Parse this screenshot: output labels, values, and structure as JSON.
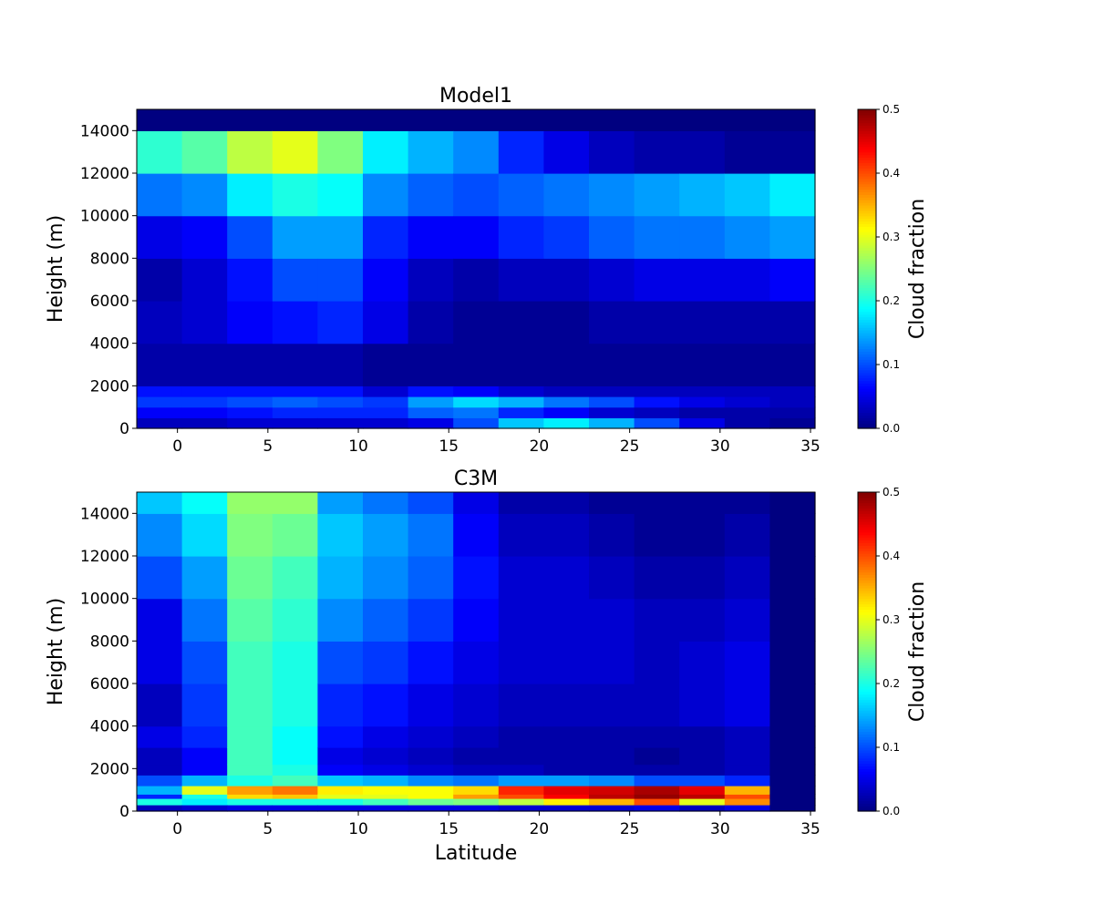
{
  "figure": {
    "xlabel": "Latitude"
  },
  "colorbar": {
    "label": "Cloud fraction",
    "vmin": 0.0,
    "vmax": 0.5,
    "ticks": [
      "0.0",
      "0.1",
      "0.2",
      "0.3",
      "0.4",
      "0.5"
    ],
    "colormap": "jet"
  },
  "chart_data": [
    {
      "type": "heatmap",
      "title": "Model1",
      "ylabel": "Height (m)",
      "xlim": [
        -2.25,
        35.25
      ],
      "ylim": [
        0,
        15000
      ],
      "x_ticks": [
        "0",
        "5",
        "10",
        "15",
        "20",
        "25",
        "30",
        "35"
      ],
      "y_ticks": [
        "0",
        "2000",
        "4000",
        "6000",
        "8000",
        "10000",
        "12000",
        "14000"
      ],
      "lat_edges": [
        -2.25,
        0.25,
        2.75,
        5.25,
        7.75,
        10.25,
        12.75,
        15.25,
        17.75,
        20.25,
        22.75,
        25.25,
        27.75,
        30.25,
        32.75,
        35.25
      ],
      "height_levels": [
        0,
        500,
        1000,
        1500,
        2000,
        4000,
        6000,
        8000,
        10000,
        12000,
        14000,
        15000
      ],
      "values": [
        [
          0.03,
          0.06,
          0.09,
          0.07,
          0.02,
          0.03,
          0.02,
          0.05,
          0.12,
          0.21,
          0.0
        ],
        [
          0.03,
          0.06,
          0.09,
          0.07,
          0.02,
          0.04,
          0.04,
          0.06,
          0.13,
          0.23,
          0.0
        ],
        [
          0.04,
          0.07,
          0.1,
          0.07,
          0.02,
          0.06,
          0.07,
          0.1,
          0.18,
          0.28,
          0.0
        ],
        [
          0.04,
          0.08,
          0.11,
          0.07,
          0.02,
          0.07,
          0.1,
          0.14,
          0.2,
          0.3,
          0.0
        ],
        [
          0.04,
          0.08,
          0.1,
          0.07,
          0.02,
          0.08,
          0.1,
          0.14,
          0.19,
          0.25,
          0.0
        ],
        [
          0.04,
          0.08,
          0.09,
          0.04,
          0.01,
          0.05,
          0.06,
          0.08,
          0.13,
          0.18,
          0.0
        ],
        [
          0.05,
          0.11,
          0.14,
          0.07,
          0.01,
          0.02,
          0.03,
          0.06,
          0.11,
          0.15,
          0.0
        ],
        [
          0.1,
          0.12,
          0.17,
          0.06,
          0.01,
          0.01,
          0.02,
          0.06,
          0.1,
          0.13,
          0.0
        ],
        [
          0.16,
          0.08,
          0.15,
          0.04,
          0.01,
          0.01,
          0.03,
          0.08,
          0.11,
          0.08,
          0.0
        ],
        [
          0.18,
          0.06,
          0.12,
          0.03,
          0.01,
          0.01,
          0.03,
          0.09,
          0.12,
          0.05,
          0.0
        ],
        [
          0.15,
          0.04,
          0.1,
          0.03,
          0.01,
          0.02,
          0.04,
          0.11,
          0.13,
          0.03,
          0.0
        ],
        [
          0.1,
          0.03,
          0.07,
          0.03,
          0.01,
          0.02,
          0.05,
          0.12,
          0.14,
          0.02,
          0.0
        ],
        [
          0.05,
          0.02,
          0.05,
          0.03,
          0.01,
          0.02,
          0.05,
          0.12,
          0.15,
          0.02,
          0.0
        ],
        [
          0.02,
          0.02,
          0.04,
          0.03,
          0.01,
          0.02,
          0.05,
          0.13,
          0.16,
          0.01,
          0.0
        ],
        [
          0.01,
          0.02,
          0.03,
          0.03,
          0.01,
          0.02,
          0.06,
          0.14,
          0.18,
          0.01,
          0.0
        ]
      ]
    },
    {
      "type": "heatmap",
      "title": "C3M",
      "ylabel": "Height (m)",
      "xlabel": "Latitude",
      "xlim": [
        -2.25,
        35.25
      ],
      "ylim": [
        0,
        15000
      ],
      "x_ticks": [
        "0",
        "5",
        "10",
        "15",
        "20",
        "25",
        "30",
        "35"
      ],
      "y_ticks": [
        "0",
        "2000",
        "4000",
        "6000",
        "8000",
        "10000",
        "12000",
        "14000"
      ],
      "lat_edges": [
        -2.25,
        0.25,
        2.75,
        5.25,
        7.75,
        10.25,
        12.75,
        15.25,
        17.75,
        20.25,
        22.75,
        25.25,
        27.75,
        30.25,
        32.75,
        35.25
      ],
      "height_levels": [
        0,
        300,
        600,
        800,
        1200,
        1700,
        2200,
        3000,
        4000,
        6000,
        8000,
        10000,
        12000,
        14000,
        15000
      ],
      "values": [
        [
          0.03,
          0.2,
          0.08,
          0.15,
          0.1,
          0.03,
          0.03,
          0.05,
          0.03,
          0.05,
          0.05,
          0.1,
          0.13,
          0.16
        ],
        [
          0.04,
          0.18,
          0.2,
          0.3,
          0.15,
          0.06,
          0.06,
          0.08,
          0.09,
          0.1,
          0.12,
          0.14,
          0.17,
          0.19
        ],
        [
          0.05,
          0.2,
          0.33,
          0.36,
          0.2,
          0.22,
          0.22,
          0.22,
          0.22,
          0.22,
          0.23,
          0.24,
          0.25,
          0.26
        ],
        [
          0.05,
          0.2,
          0.34,
          0.38,
          0.22,
          0.2,
          0.19,
          0.19,
          0.2,
          0.2,
          0.21,
          0.22,
          0.24,
          0.26
        ],
        [
          0.05,
          0.2,
          0.3,
          0.32,
          0.16,
          0.06,
          0.05,
          0.07,
          0.08,
          0.1,
          0.13,
          0.15,
          0.16,
          0.14
        ],
        [
          0.05,
          0.22,
          0.3,
          0.31,
          0.15,
          0.05,
          0.04,
          0.05,
          0.07,
          0.09,
          0.11,
          0.13,
          0.14,
          0.12
        ],
        [
          0.05,
          0.24,
          0.31,
          0.31,
          0.13,
          0.04,
          0.03,
          0.04,
          0.05,
          0.07,
          0.09,
          0.11,
          0.12,
          0.1
        ],
        [
          0.05,
          0.25,
          0.36,
          0.33,
          0.12,
          0.03,
          0.02,
          0.03,
          0.04,
          0.05,
          0.06,
          0.07,
          0.06,
          0.05
        ],
        [
          0.04,
          0.28,
          0.4,
          0.42,
          0.14,
          0.03,
          0.02,
          0.02,
          0.03,
          0.04,
          0.04,
          0.04,
          0.03,
          0.02
        ],
        [
          0.04,
          0.32,
          0.44,
          0.45,
          0.14,
          0.02,
          0.02,
          0.02,
          0.03,
          0.04,
          0.04,
          0.04,
          0.03,
          0.02
        ],
        [
          0.04,
          0.35,
          0.47,
          0.46,
          0.13,
          0.02,
          0.02,
          0.02,
          0.03,
          0.04,
          0.04,
          0.03,
          0.02,
          0.01
        ],
        [
          0.05,
          0.4,
          0.49,
          0.48,
          0.1,
          0.02,
          0.01,
          0.02,
          0.03,
          0.03,
          0.03,
          0.02,
          0.01,
          0.01
        ],
        [
          0.03,
          0.3,
          0.47,
          0.45,
          0.1,
          0.02,
          0.02,
          0.02,
          0.04,
          0.04,
          0.03,
          0.02,
          0.01,
          0.01
        ],
        [
          0.05,
          0.37,
          0.4,
          0.35,
          0.08,
          0.03,
          0.03,
          0.03,
          0.05,
          0.05,
          0.04,
          0.03,
          0.02,
          0.01
        ],
        [
          0.0,
          0.0,
          0.0,
          0.0,
          0.0,
          0.0,
          0.0,
          0.0,
          0.0,
          0.0,
          0.0,
          0.0,
          0.0,
          0.0
        ]
      ]
    }
  ]
}
